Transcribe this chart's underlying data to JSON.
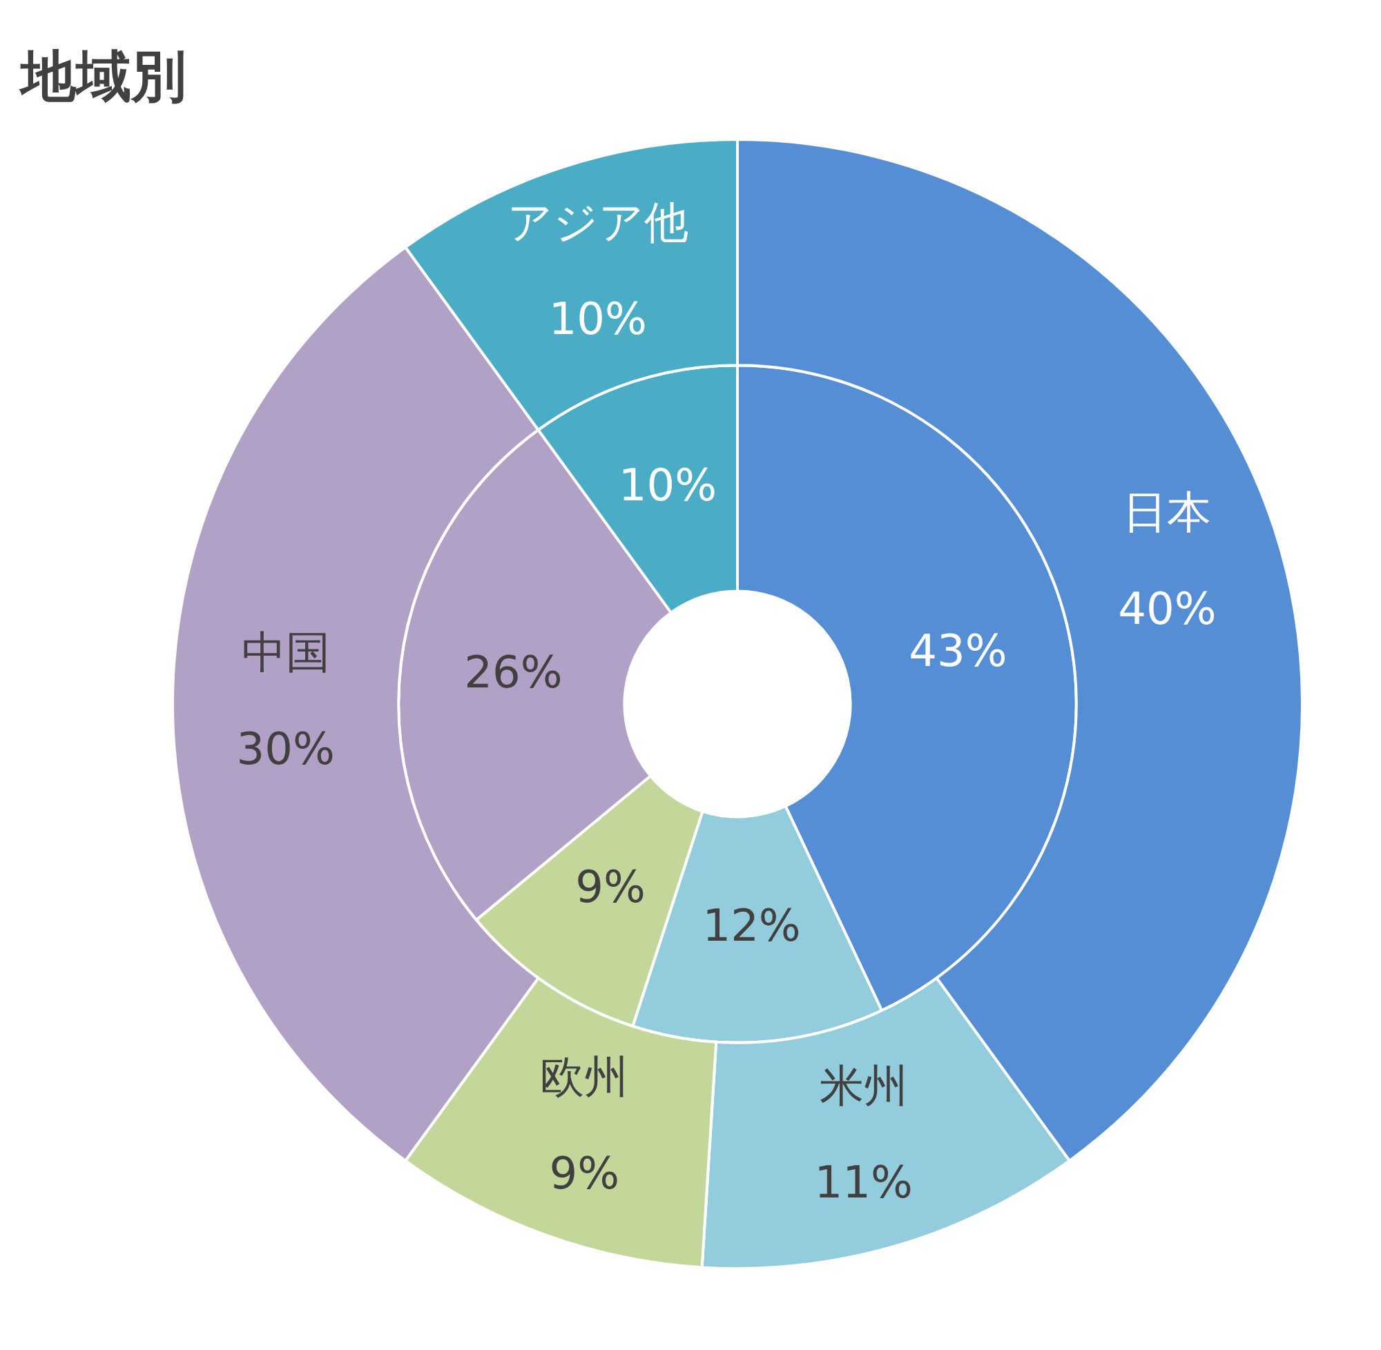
{
  "chart_data": {
    "type": "donut",
    "title": "地域別",
    "categories": [
      "日本",
      "米州",
      "欧州",
      "中国",
      "アジア他"
    ],
    "colors": [
      "#558ed5",
      "#93cddd",
      "#c4d79b",
      "#b2a1c7",
      "#4bacc6"
    ],
    "series": [
      {
        "values": [
          40,
          11,
          9,
          30,
          10
        ],
        "value_labels": [
          "40%",
          "11%",
          "9%",
          "30%",
          "10%"
        ]
      },
      {
        "values": [
          43,
          12,
          9,
          26,
          10
        ],
        "value_labels": [
          "43%",
          "12%",
          "9%",
          "26%",
          "10%"
        ]
      }
    ],
    "legend": false
  }
}
